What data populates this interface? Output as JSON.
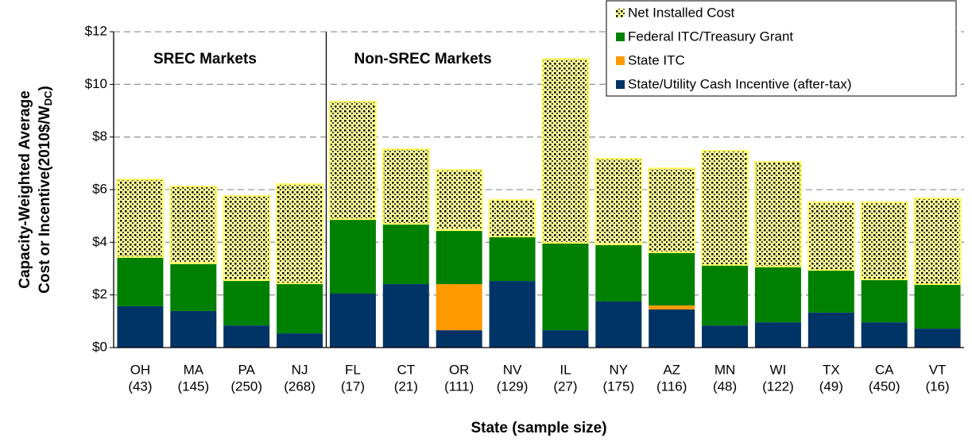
{
  "chart_data": {
    "type": "stacked_bar",
    "y_label": {
      "line1": "Capacity-Weighted  Average",
      "line2": "Cost or Incentive(2010$/W",
      "sub": "DC",
      "end": ")"
    },
    "x_label": "State (sample size)",
    "categories": [
      "OH",
      "MA",
      "PA",
      "NJ",
      "FL",
      "CT",
      "OR",
      "NV",
      "IL",
      "NY",
      "AZ",
      "MN",
      "WI",
      "TX",
      "CA",
      "VT"
    ],
    "sample_sizes": [
      "(43)",
      "(145)",
      "(250)",
      "(268)",
      "(17)",
      "(21)",
      "(111)",
      "(129)",
      "(27)",
      "(175)",
      "(116)",
      "(48)",
      "(122)",
      "(49)",
      "(450)",
      "(16)"
    ],
    "groups": [
      {
        "label": "SREC Markets",
        "categories": 4
      },
      {
        "label": "Non-SREC Markets",
        "categories": 12
      }
    ],
    "series": [
      {
        "name": "State/Utility Cash Incentive (after-tax)",
        "color": "#003366",
        "values": [
          1.57,
          1.39,
          0.84,
          0.54,
          2.05,
          2.41,
          0.66,
          2.53,
          0.66,
          1.75,
          1.45,
          0.84,
          0.96,
          1.33,
          0.96,
          0.72
        ]
      },
      {
        "name": "State ITC",
        "color": "#ff9900",
        "values": [
          0,
          0,
          0,
          0,
          0,
          0,
          1.75,
          0,
          0,
          0,
          0.15,
          0,
          0,
          0,
          0,
          0
        ]
      },
      {
        "name": "Federal ITC/Treasury Grant",
        "color": "#008000",
        "values": [
          1.87,
          1.81,
          1.72,
          1.9,
          2.83,
          2.29,
          2.05,
          1.69,
          3.32,
          2.17,
          2.02,
          2.3,
          2.12,
          1.62,
          1.63,
          1.69
        ]
      },
      {
        "name": "Net Installed Cost",
        "color": "#ffff99",
        "pattern": "dots",
        "values": [
          2.95,
          2.92,
          3.2,
          3.77,
          4.47,
          2.84,
          2.29,
          1.39,
          6.99,
          3.26,
          3.19,
          4.34,
          3.97,
          2.57,
          2.93,
          3.26
        ]
      }
    ],
    "ylim": [
      0,
      12
    ],
    "yticks": [
      {
        "value": 0,
        "label": "$0"
      },
      {
        "value": 2,
        "label": "$2"
      },
      {
        "value": 4,
        "label": "$4"
      },
      {
        "value": 6,
        "label": "$6"
      },
      {
        "value": 8,
        "label": "$8"
      },
      {
        "value": 10,
        "label": "$10"
      },
      {
        "value": 12,
        "label": "$12"
      }
    ],
    "grid": true,
    "legend": "upper right"
  }
}
